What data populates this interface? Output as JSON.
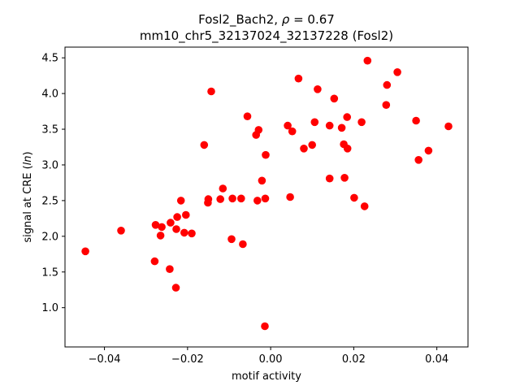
{
  "chart_data": {
    "type": "scatter",
    "title_line1_prefix": "Fosl2_Bach2, ",
    "title_rho_symbol": "ρ",
    "title_rho_value": " = 0.67",
    "title_line2": "mm10_chr5_32137024_32137228 (Fosl2)",
    "xlabel": "motif activity",
    "ylabel_prefix": "signal at CRE (",
    "ylabel_italic": "ln",
    "ylabel_suffix": ")",
    "xlim": [
      -0.0495,
      0.0475
    ],
    "ylim": [
      0.45,
      4.65
    ],
    "xticks": [
      -0.04,
      -0.02,
      0.0,
      0.02,
      0.04
    ],
    "xtick_labels": [
      "−0.04",
      "−0.02",
      "0.00",
      "0.02",
      "0.04"
    ],
    "yticks": [
      1.0,
      1.5,
      2.0,
      2.5,
      3.0,
      3.5,
      4.0,
      4.5
    ],
    "ytick_labels": [
      "1.0",
      "1.5",
      "2.0",
      "2.5",
      "3.0",
      "3.5",
      "4.0",
      "4.5"
    ],
    "marker_color": "#ff0000",
    "grid": false,
    "points": [
      {
        "x": -0.0446,
        "y": 1.79
      },
      {
        "x": -0.036,
        "y": 2.08
      },
      {
        "x": -0.0279,
        "y": 1.65
      },
      {
        "x": -0.0277,
        "y": 2.16
      },
      {
        "x": -0.0265,
        "y": 2.01
      },
      {
        "x": -0.0262,
        "y": 2.13
      },
      {
        "x": -0.0243,
        "y": 1.54
      },
      {
        "x": -0.0241,
        "y": 2.19
      },
      {
        "x": -0.0228,
        "y": 1.28
      },
      {
        "x": -0.0227,
        "y": 2.1
      },
      {
        "x": -0.0225,
        "y": 2.27
      },
      {
        "x": -0.0216,
        "y": 2.5
      },
      {
        "x": -0.0208,
        "y": 2.05
      },
      {
        "x": -0.0204,
        "y": 2.3
      },
      {
        "x": -0.019,
        "y": 2.04
      },
      {
        "x": -0.016,
        "y": 3.28
      },
      {
        "x": -0.0151,
        "y": 2.47
      },
      {
        "x": -0.015,
        "y": 2.52
      },
      {
        "x": -0.0143,
        "y": 4.03
      },
      {
        "x": -0.0121,
        "y": 2.52
      },
      {
        "x": -0.0115,
        "y": 2.67
      },
      {
        "x": -0.0094,
        "y": 1.96
      },
      {
        "x": -0.0092,
        "y": 2.53
      },
      {
        "x": -0.0071,
        "y": 2.53
      },
      {
        "x": -0.0067,
        "y": 1.89
      },
      {
        "x": -0.0056,
        "y": 3.68
      },
      {
        "x": -0.0035,
        "y": 3.42
      },
      {
        "x": -0.0032,
        "y": 2.5
      },
      {
        "x": -0.0029,
        "y": 3.49
      },
      {
        "x": -0.0021,
        "y": 2.78
      },
      {
        "x": -0.0013,
        "y": 2.53
      },
      {
        "x": -0.0012,
        "y": 3.14
      },
      {
        "x": -0.0014,
        "y": 0.74
      },
      {
        "x": 0.0041,
        "y": 3.55
      },
      {
        "x": 0.0047,
        "y": 2.55
      },
      {
        "x": 0.0052,
        "y": 3.47
      },
      {
        "x": 0.0067,
        "y": 4.21
      },
      {
        "x": 0.008,
        "y": 3.23
      },
      {
        "x": 0.01,
        "y": 3.28
      },
      {
        "x": 0.0106,
        "y": 3.6
      },
      {
        "x": 0.0113,
        "y": 4.06
      },
      {
        "x": 0.0142,
        "y": 2.81
      },
      {
        "x": 0.0142,
        "y": 3.55
      },
      {
        "x": 0.0153,
        "y": 3.93
      },
      {
        "x": 0.0171,
        "y": 3.52
      },
      {
        "x": 0.0176,
        "y": 3.29
      },
      {
        "x": 0.0178,
        "y": 2.82
      },
      {
        "x": 0.0184,
        "y": 3.67
      },
      {
        "x": 0.0185,
        "y": 3.23
      },
      {
        "x": 0.0201,
        "y": 2.54
      },
      {
        "x": 0.0219,
        "y": 3.6
      },
      {
        "x": 0.0226,
        "y": 2.42
      },
      {
        "x": 0.0233,
        "y": 4.46
      },
      {
        "x": 0.0278,
        "y": 3.84
      },
      {
        "x": 0.028,
        "y": 4.12
      },
      {
        "x": 0.0305,
        "y": 4.3
      },
      {
        "x": 0.035,
        "y": 3.62
      },
      {
        "x": 0.0356,
        "y": 3.07
      },
      {
        "x": 0.038,
        "y": 3.2
      },
      {
        "x": 0.0428,
        "y": 3.54
      }
    ]
  }
}
